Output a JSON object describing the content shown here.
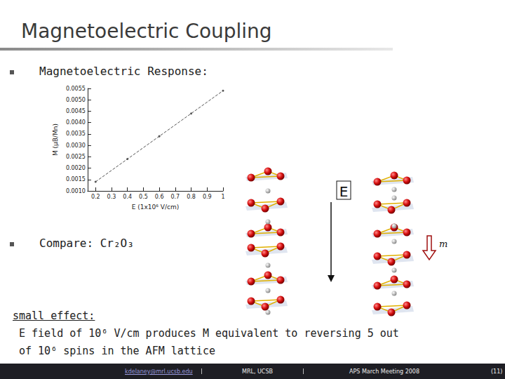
{
  "slide": {
    "title": "Magnetoelectric Coupling",
    "bullets": [
      "Magnetoelectric Response:",
      "Compare: Cr₂O₃"
    ],
    "diagram": {
      "field_label": "E",
      "moment_label": "m"
    },
    "note": {
      "heading": "small effect:",
      "lines": [
        "E field of 10⁶ V/cm produces M equivalent to reversing 5 out",
        "of 10⁶ spins in the AFM lattice"
      ]
    },
    "footer": [
      "kdelaney@mrl.ucsb.edu",
      "MRL, UCSB",
      "APS March Meeting 2008",
      "(11)"
    ]
  },
  "chart_data": {
    "type": "line",
    "x_label": "E (1x10⁶ V/cm)",
    "y_label": "M (μB/Mn)",
    "x": [
      0.2,
      0.4,
      0.6,
      0.8,
      1.0
    ],
    "values": [
      0.0014,
      0.0024,
      0.0034,
      0.0044,
      0.0054
    ],
    "color": "#555555",
    "marker": "circle",
    "line_style": "dashed",
    "grid": false,
    "xlim": [
      0.15,
      1
    ],
    "xticks": [
      0.2,
      0.3,
      0.4,
      0.5,
      0.6,
      0.7,
      0.8,
      0.9,
      1
    ],
    "ylim": [
      0.001,
      0.0055
    ],
    "yticks": [
      {
        "value": 0.001,
        "label": "0.0010"
      },
      {
        "value": 0.0015,
        "label": "0.0015"
      },
      {
        "value": 0.002,
        "label": "0.0020"
      },
      {
        "value": 0.0025,
        "label": "0.0025"
      },
      {
        "value": 0.003,
        "label": "0.0030"
      },
      {
        "value": 0.0035,
        "label": "0.0035"
      },
      {
        "value": 0.004,
        "label": "0.0040"
      },
      {
        "value": 0.0045,
        "label": "0.0045"
      },
      {
        "value": 0.005,
        "label": "0.0050"
      },
      {
        "value": 0.0055,
        "label": "0.0055"
      }
    ]
  }
}
